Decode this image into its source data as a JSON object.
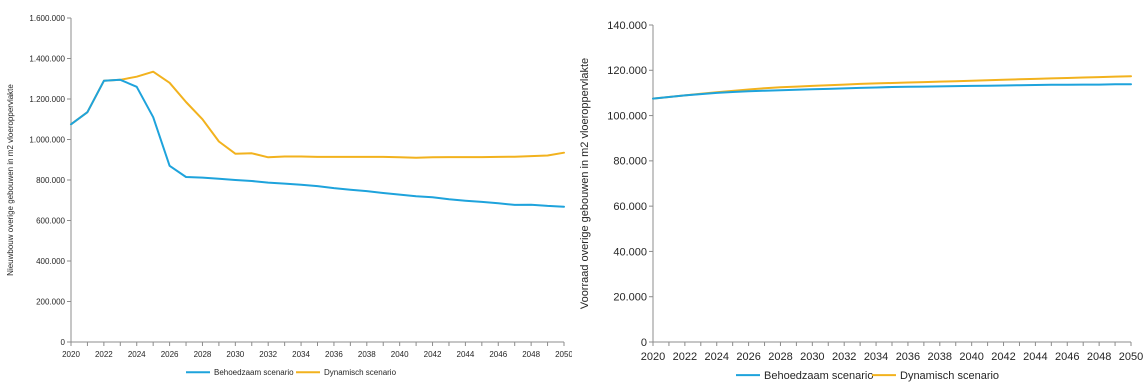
{
  "chart_data": [
    {
      "type": "line",
      "title": "",
      "xlabel": "",
      "ylabel": "Nieuwbouw overige gebouwen in m2 vloeroppervlakte",
      "xlim": [
        2020,
        2050
      ],
      "ylim": [
        0,
        1600000
      ],
      "grid": false,
      "legend_position": "bottom",
      "x_ticks": [
        "2020",
        "2022",
        "2024",
        "2026",
        "2028",
        "2030",
        "2032",
        "2034",
        "2036",
        "2038",
        "2040",
        "2042",
        "2044",
        "2046",
        "2048",
        "2050"
      ],
      "y_ticks": [
        "0",
        "200.000",
        "400.000",
        "600.000",
        "800.000",
        "1.000.000",
        "1.200.000",
        "1.400.000",
        "1.600.000"
      ],
      "x": [
        2020,
        2021,
        2022,
        2023,
        2024,
        2025,
        2026,
        2027,
        2028,
        2029,
        2030,
        2031,
        2032,
        2033,
        2034,
        2035,
        2036,
        2037,
        2038,
        2039,
        2040,
        2041,
        2042,
        2043,
        2044,
        2045,
        2046,
        2047,
        2048,
        2049,
        2050
      ],
      "series": [
        {
          "name": "Behoedzaam scenario",
          "color": "#1ea3dc",
          "values": [
            1075000,
            1135000,
            1290000,
            1295000,
            1260000,
            1110000,
            870000,
            815000,
            812000,
            806000,
            800000,
            795000,
            787000,
            782000,
            777000,
            770000,
            760000,
            752000,
            745000,
            736000,
            728000,
            720000,
            715000,
            705000,
            698000,
            692000,
            685000,
            677000,
            678000,
            672000,
            668000
          ]
        },
        {
          "name": "Dynamisch scenario",
          "color": "#f2b21e",
          "values": [
            1075000,
            1135000,
            1290000,
            1295000,
            1310000,
            1335000,
            1280000,
            1185000,
            1100000,
            990000,
            930000,
            932000,
            912000,
            916000,
            916000,
            914000,
            914000,
            914000,
            914000,
            914000,
            912000,
            910000,
            912000,
            913000,
            913000,
            913000,
            914000,
            915000,
            918000,
            921000,
            935000
          ]
        }
      ]
    },
    {
      "type": "line",
      "title": "",
      "xlabel": "",
      "ylabel": "Voorraad overige gebouwen in m2 vloeroppervlakte",
      "xlim": [
        2020,
        2050
      ],
      "ylim": [
        0,
        140000
      ],
      "grid": false,
      "legend_position": "bottom",
      "x_ticks": [
        "2020",
        "2022",
        "2024",
        "2026",
        "2028",
        "2030",
        "2032",
        "2034",
        "2036",
        "2038",
        "2040",
        "2042",
        "2044",
        "2046",
        "2048",
        "2050"
      ],
      "y_ticks": [
        "0",
        "20.000",
        "40.000",
        "60.000",
        "80.000",
        "100.000",
        "120.000",
        "140.000"
      ],
      "x": [
        2020,
        2021,
        2022,
        2023,
        2024,
        2025,
        2026,
        2027,
        2028,
        2029,
        2030,
        2031,
        2032,
        2033,
        2034,
        2035,
        2036,
        2037,
        2038,
        2039,
        2040,
        2041,
        2042,
        2043,
        2044,
        2045,
        2046,
        2047,
        2048,
        2049,
        2050
      ],
      "series": [
        {
          "name": "Behoedzaam scenario",
          "color": "#1ea3dc",
          "values": [
            107500,
            108200,
            108900,
            109500,
            110000,
            110400,
            110700,
            111000,
            111200,
            111400,
            111600,
            111800,
            112000,
            112200,
            112400,
            112600,
            112700,
            112800,
            112900,
            113000,
            113100,
            113200,
            113300,
            113400,
            113500,
            113600,
            113600,
            113700,
            113700,
            113800,
            113800
          ]
        },
        {
          "name": "Dynamisch scenario",
          "color": "#f2b21e",
          "values": [
            107500,
            108200,
            108900,
            109600,
            110300,
            110900,
            111500,
            112100,
            112500,
            112800,
            113100,
            113400,
            113700,
            114000,
            114200,
            114400,
            114600,
            114800,
            115000,
            115200,
            115400,
            115600,
            115800,
            116000,
            116200,
            116400,
            116600,
            116800,
            117000,
            117200,
            117400
          ]
        }
      ]
    }
  ]
}
